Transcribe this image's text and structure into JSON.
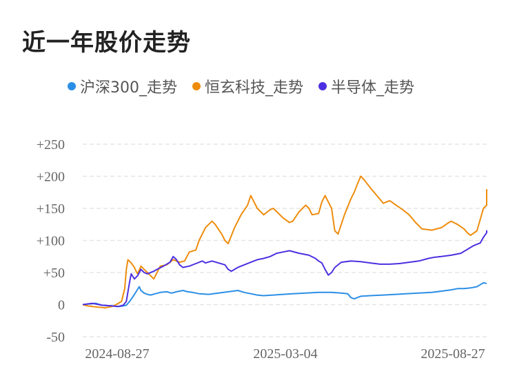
{
  "title": "近一年股价走势",
  "chart_data": {
    "type": "line",
    "title": "近一年股价走势",
    "xlabel": "",
    "ylabel": "",
    "x_ticks": [
      "2024-08-27",
      "2025-03-04",
      "2025-08-27"
    ],
    "y_ticks": [
      "+250",
      "+200",
      "+150",
      "+100",
      "+50",
      "0",
      "-50"
    ],
    "y_tick_values": [
      250,
      200,
      150,
      100,
      50,
      0,
      -50
    ],
    "ylim": [
      -50,
      250
    ],
    "xlim": [
      0,
      250
    ],
    "grid": true,
    "legend_position": "top",
    "series": [
      {
        "name": "沪深300_走势",
        "color": "#2b8ee6",
        "points": [
          [
            0,
            0
          ],
          [
            8,
            2
          ],
          [
            12,
            -1
          ],
          [
            18,
            -2
          ],
          [
            22,
            -3
          ],
          [
            25,
            -2
          ],
          [
            27,
            -1
          ],
          [
            29,
            5
          ],
          [
            31,
            12
          ],
          [
            33,
            20
          ],
          [
            35,
            28
          ],
          [
            36,
            22
          ],
          [
            38,
            18
          ],
          [
            40,
            16
          ],
          [
            42,
            15
          ],
          [
            45,
            17
          ],
          [
            48,
            19
          ],
          [
            52,
            20
          ],
          [
            55,
            18
          ],
          [
            58,
            20
          ],
          [
            62,
            22
          ],
          [
            65,
            20
          ],
          [
            68,
            19
          ],
          [
            72,
            17
          ],
          [
            78,
            16
          ],
          [
            84,
            18
          ],
          [
            90,
            20
          ],
          [
            96,
            22
          ],
          [
            100,
            19
          ],
          [
            104,
            17
          ],
          [
            108,
            15
          ],
          [
            112,
            14
          ],
          [
            118,
            15
          ],
          [
            124,
            16
          ],
          [
            130,
            17
          ],
          [
            138,
            18
          ],
          [
            146,
            19
          ],
          [
            154,
            19
          ],
          [
            160,
            18
          ],
          [
            164,
            17
          ],
          [
            166,
            11
          ],
          [
            168,
            9
          ],
          [
            172,
            13
          ],
          [
            178,
            14
          ],
          [
            186,
            15
          ],
          [
            194,
            16
          ],
          [
            200,
            17
          ],
          [
            208,
            18
          ],
          [
            216,
            19
          ],
          [
            222,
            21
          ],
          [
            228,
            23
          ],
          [
            232,
            25
          ],
          [
            236,
            25
          ],
          [
            240,
            26
          ],
          [
            244,
            28
          ],
          [
            246,
            31
          ],
          [
            248,
            34
          ],
          [
            250,
            33
          ]
        ]
      },
      {
        "name": "恒玄科技_走势",
        "color": "#ee8c0c",
        "points": [
          [
            0,
            0
          ],
          [
            3,
            -2
          ],
          [
            6,
            -3
          ],
          [
            10,
            -4
          ],
          [
            14,
            -5
          ],
          [
            18,
            -3
          ],
          [
            20,
            -1
          ],
          [
            22,
            2
          ],
          [
            24,
            5
          ],
          [
            26,
            25
          ],
          [
            27,
            55
          ],
          [
            28,
            70
          ],
          [
            30,
            65
          ],
          [
            32,
            58
          ],
          [
            33,
            52
          ],
          [
            34,
            48
          ],
          [
            36,
            60
          ],
          [
            38,
            55
          ],
          [
            40,
            50
          ],
          [
            42,
            45
          ],
          [
            44,
            40
          ],
          [
            46,
            50
          ],
          [
            48,
            60
          ],
          [
            52,
            62
          ],
          [
            56,
            70
          ],
          [
            60,
            66
          ],
          [
            63,
            68
          ],
          [
            66,
            82
          ],
          [
            70,
            85
          ],
          [
            72,
            100
          ],
          [
            74,
            110
          ],
          [
            76,
            120
          ],
          [
            80,
            130
          ],
          [
            82,
            125
          ],
          [
            86,
            110
          ],
          [
            88,
            100
          ],
          [
            90,
            95
          ],
          [
            94,
            120
          ],
          [
            98,
            140
          ],
          [
            102,
            155
          ],
          [
            104,
            170
          ],
          [
            108,
            150
          ],
          [
            112,
            140
          ],
          [
            116,
            148
          ],
          [
            118,
            150
          ],
          [
            120,
            145
          ],
          [
            124,
            135
          ],
          [
            128,
            128
          ],
          [
            130,
            130
          ],
          [
            134,
            145
          ],
          [
            138,
            155
          ],
          [
            140,
            150
          ],
          [
            142,
            140
          ],
          [
            146,
            142
          ],
          [
            148,
            160
          ],
          [
            150,
            170
          ],
          [
            154,
            150
          ],
          [
            156,
            115
          ],
          [
            158,
            110
          ],
          [
            162,
            140
          ],
          [
            166,
            165
          ],
          [
            168,
            175
          ],
          [
            170,
            188
          ],
          [
            172,
            200
          ],
          [
            174,
            195
          ],
          [
            178,
            182
          ],
          [
            182,
            170
          ],
          [
            186,
            158
          ],
          [
            190,
            162
          ],
          [
            194,
            155
          ],
          [
            198,
            148
          ],
          [
            202,
            140
          ],
          [
            206,
            128
          ],
          [
            210,
            118
          ],
          [
            216,
            116
          ],
          [
            222,
            120
          ],
          [
            226,
            127
          ],
          [
            228,
            130
          ],
          [
            232,
            125
          ],
          [
            236,
            118
          ],
          [
            238,
            112
          ],
          [
            240,
            108
          ],
          [
            244,
            115
          ],
          [
            248,
            150
          ],
          [
            250,
            155
          ],
          [
            252,
            165
          ],
          [
            254,
            180
          ]
        ]
      },
      {
        "name": "半导体_走势",
        "color": "#4c2fe0",
        "points": [
          [
            0,
            0
          ],
          [
            6,
            2
          ],
          [
            12,
            -1
          ],
          [
            18,
            -2
          ],
          [
            22,
            -3
          ],
          [
            25,
            -1
          ],
          [
            27,
            5
          ],
          [
            28,
            20
          ],
          [
            29,
            35
          ],
          [
            30,
            48
          ],
          [
            32,
            40
          ],
          [
            34,
            45
          ],
          [
            36,
            55
          ],
          [
            38,
            50
          ],
          [
            40,
            48
          ],
          [
            44,
            52
          ],
          [
            46,
            55
          ],
          [
            50,
            60
          ],
          [
            54,
            66
          ],
          [
            56,
            75
          ],
          [
            58,
            70
          ],
          [
            60,
            62
          ],
          [
            62,
            58
          ],
          [
            66,
            60
          ],
          [
            70,
            64
          ],
          [
            74,
            68
          ],
          [
            76,
            65
          ],
          [
            80,
            68
          ],
          [
            84,
            65
          ],
          [
            88,
            62
          ],
          [
            90,
            55
          ],
          [
            92,
            52
          ],
          [
            96,
            58
          ],
          [
            100,
            62
          ],
          [
            104,
            66
          ],
          [
            108,
            70
          ],
          [
            112,
            72
          ],
          [
            116,
            75
          ],
          [
            120,
            80
          ],
          [
            124,
            82
          ],
          [
            128,
            84
          ],
          [
            134,
            80
          ],
          [
            140,
            77
          ],
          [
            144,
            72
          ],
          [
            146,
            68
          ],
          [
            148,
            65
          ],
          [
            150,
            55
          ],
          [
            152,
            46
          ],
          [
            154,
            50
          ],
          [
            156,
            58
          ],
          [
            160,
            66
          ],
          [
            166,
            68
          ],
          [
            172,
            67
          ],
          [
            178,
            65
          ],
          [
            184,
            63
          ],
          [
            190,
            63
          ],
          [
            196,
            64
          ],
          [
            202,
            66
          ],
          [
            208,
            68
          ],
          [
            214,
            72
          ],
          [
            218,
            74
          ],
          [
            222,
            75
          ],
          [
            228,
            77
          ],
          [
            234,
            80
          ],
          [
            238,
            86
          ],
          [
            242,
            92
          ],
          [
            246,
            96
          ],
          [
            248,
            105
          ],
          [
            250,
            112
          ],
          [
            252,
            115
          ],
          [
            254,
            112
          ]
        ]
      }
    ]
  }
}
